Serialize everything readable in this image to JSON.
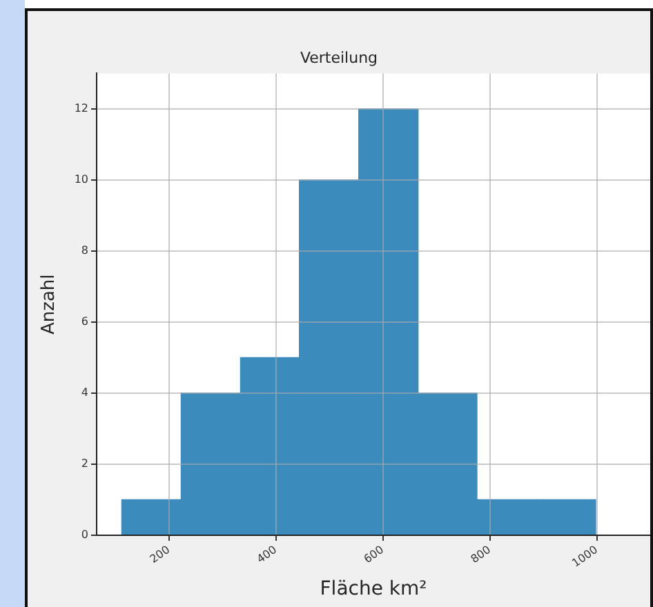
{
  "chart_data": {
    "type": "histogram",
    "title": "Verteilung",
    "xlabel": "Fläche km²",
    "ylabel": "Anzahl",
    "bins": [
      112,
      223,
      334,
      444,
      555,
      666,
      776,
      887,
      998
    ],
    "values": [
      1,
      4,
      5,
      10,
      12,
      4,
      1,
      1
    ],
    "color": "#3b8bbd",
    "xlim": [
      65,
      1100
    ],
    "xticks": [
      200,
      400,
      600,
      800,
      1000
    ],
    "ylim": [
      0,
      13
    ],
    "yticks": [
      0,
      2,
      4,
      6,
      8,
      10,
      12
    ],
    "grid": true
  }
}
